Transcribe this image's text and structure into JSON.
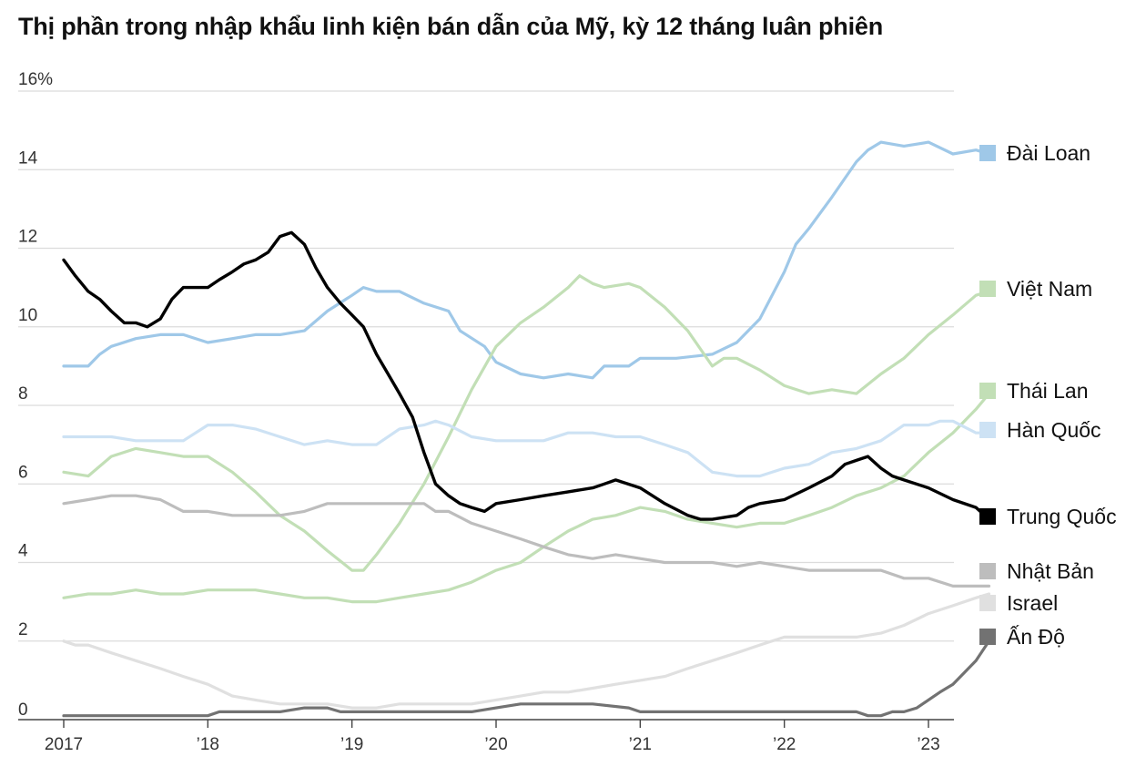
{
  "header": {
    "title": "Thị phần trong nhập khẩu linh kiện bán dẫn của Mỹ, kỳ 12 tháng luân phiên"
  },
  "chart_data": {
    "type": "line",
    "title": "Thị phần trong nhập khẩu linh kiện bán dẫn của Mỹ, kỳ 12 tháng luân phiên",
    "xlabel": "",
    "ylabel": "",
    "ylim": [
      0,
      16
    ],
    "xlim": [
      2017.0,
      2023.5
    ],
    "grid": true,
    "legend_position": "right",
    "y_ticks": [
      {
        "value": 0,
        "label": "0"
      },
      {
        "value": 2,
        "label": "2"
      },
      {
        "value": 4,
        "label": "4"
      },
      {
        "value": 6,
        "label": "6"
      },
      {
        "value": 8,
        "label": "8"
      },
      {
        "value": 10,
        "label": "10"
      },
      {
        "value": 12,
        "label": "12"
      },
      {
        "value": 14,
        "label": "14"
      },
      {
        "value": 16,
        "label": "16%"
      }
    ],
    "x_ticks": [
      {
        "value": 2017,
        "label": "2017"
      },
      {
        "value": 2018,
        "label": "’18"
      },
      {
        "value": 2019,
        "label": "’19"
      },
      {
        "value": 2020,
        "label": "’20"
      },
      {
        "value": 2021,
        "label": "’21"
      },
      {
        "value": 2022,
        "label": "’22"
      },
      {
        "value": 2023,
        "label": "’23"
      }
    ],
    "series": [
      {
        "name": "Đài Loan",
        "color": "#9fc8e8",
        "x": [
          2017.0,
          2017.17,
          2017.25,
          2017.33,
          2017.5,
          2017.67,
          2017.83,
          2018.0,
          2018.17,
          2018.33,
          2018.5,
          2018.67,
          2018.83,
          2019.0,
          2019.08,
          2019.17,
          2019.33,
          2019.5,
          2019.67,
          2019.75,
          2019.92,
          2020.0,
          2020.17,
          2020.33,
          2020.5,
          2020.67,
          2020.75,
          2020.92,
          2021.0,
          2021.25,
          2021.5,
          2021.67,
          2021.83,
          2022.0,
          2022.08,
          2022.17,
          2022.33,
          2022.5,
          2022.58,
          2022.67,
          2022.83,
          2023.0,
          2023.17,
          2023.33,
          2023.42
        ],
        "y": [
          9.0,
          9.0,
          9.3,
          9.5,
          9.7,
          9.8,
          9.8,
          9.6,
          9.7,
          9.8,
          9.8,
          9.9,
          10.4,
          10.8,
          11.0,
          10.9,
          10.9,
          10.6,
          10.4,
          9.9,
          9.5,
          9.1,
          8.8,
          8.7,
          8.8,
          8.7,
          9.0,
          9.0,
          9.2,
          9.2,
          9.3,
          9.6,
          10.2,
          11.4,
          12.1,
          12.5,
          13.3,
          14.2,
          14.5,
          14.7,
          14.6,
          14.7,
          14.4,
          14.5,
          14.4
        ]
      },
      {
        "name": "Việt Nam",
        "color": "#c2dfb6",
        "x": [
          2017.0,
          2017.17,
          2017.33,
          2017.5,
          2017.67,
          2017.83,
          2018.0,
          2018.17,
          2018.33,
          2018.5,
          2018.67,
          2018.83,
          2019.0,
          2019.08,
          2019.17,
          2019.33,
          2019.5,
          2019.67,
          2019.83,
          2020.0,
          2020.17,
          2020.33,
          2020.5,
          2020.58,
          2020.67,
          2020.75,
          2020.92,
          2021.0,
          2021.17,
          2021.33,
          2021.5,
          2021.58,
          2021.67,
          2021.83,
          2022.0,
          2022.17,
          2022.33,
          2022.5,
          2022.67,
          2022.83,
          2023.0,
          2023.17,
          2023.33,
          2023.42
        ],
        "y": [
          6.3,
          6.2,
          6.7,
          6.9,
          6.8,
          6.7,
          6.7,
          6.3,
          5.8,
          5.2,
          4.8,
          4.3,
          3.8,
          3.8,
          4.2,
          5.0,
          6.0,
          7.2,
          8.4,
          9.5,
          10.1,
          10.5,
          11.0,
          11.3,
          11.1,
          11.0,
          11.1,
          11.0,
          10.5,
          9.9,
          9.0,
          9.2,
          9.2,
          8.9,
          8.5,
          8.3,
          8.4,
          8.3,
          8.8,
          9.2,
          9.8,
          10.3,
          10.8,
          10.9
        ]
      },
      {
        "name": "Thái Lan",
        "color": "#c2dfb6",
        "x": [
          2017.0,
          2017.17,
          2017.33,
          2017.5,
          2017.67,
          2017.83,
          2018.0,
          2018.17,
          2018.33,
          2018.5,
          2018.67,
          2018.83,
          2019.0,
          2019.17,
          2019.33,
          2019.5,
          2019.67,
          2019.83,
          2020.0,
          2020.17,
          2020.33,
          2020.5,
          2020.67,
          2020.83,
          2021.0,
          2021.17,
          2021.33,
          2021.5,
          2021.67,
          2021.83,
          2022.0,
          2022.17,
          2022.33,
          2022.5,
          2022.67,
          2022.83,
          2023.0,
          2023.17,
          2023.33,
          2023.42
        ],
        "y": [
          3.1,
          3.2,
          3.2,
          3.3,
          3.2,
          3.2,
          3.3,
          3.3,
          3.3,
          3.2,
          3.1,
          3.1,
          3.0,
          3.0,
          3.1,
          3.2,
          3.3,
          3.5,
          3.8,
          4.0,
          4.4,
          4.8,
          5.1,
          5.2,
          5.4,
          5.3,
          5.1,
          5.0,
          4.9,
          5.0,
          5.0,
          5.2,
          5.4,
          5.7,
          5.9,
          6.2,
          6.8,
          7.3,
          7.9,
          8.3
        ]
      },
      {
        "name": "Hàn Quốc",
        "color": "#cde2f4",
        "x": [
          2017.0,
          2017.17,
          2017.33,
          2017.5,
          2017.67,
          2017.83,
          2018.0,
          2018.17,
          2018.33,
          2018.5,
          2018.67,
          2018.83,
          2019.0,
          2019.17,
          2019.33,
          2019.5,
          2019.58,
          2019.67,
          2019.83,
          2020.0,
          2020.17,
          2020.33,
          2020.5,
          2020.67,
          2020.83,
          2021.0,
          2021.17,
          2021.33,
          2021.5,
          2021.67,
          2021.83,
          2022.0,
          2022.17,
          2022.33,
          2022.5,
          2022.67,
          2022.83,
          2023.0,
          2023.08,
          2023.17,
          2023.33,
          2023.42
        ],
        "y": [
          7.2,
          7.2,
          7.2,
          7.1,
          7.1,
          7.1,
          7.5,
          7.5,
          7.4,
          7.2,
          7.0,
          7.1,
          7.0,
          7.0,
          7.4,
          7.5,
          7.6,
          7.5,
          7.2,
          7.1,
          7.1,
          7.1,
          7.3,
          7.3,
          7.2,
          7.2,
          7.0,
          6.8,
          6.3,
          6.2,
          6.2,
          6.4,
          6.5,
          6.8,
          6.9,
          7.1,
          7.5,
          7.5,
          7.6,
          7.6,
          7.3,
          7.3
        ]
      },
      {
        "name": "Trung Quốc",
        "color": "#000000",
        "x": [
          2017.0,
          2017.08,
          2017.17,
          2017.25,
          2017.33,
          2017.42,
          2017.5,
          2017.58,
          2017.67,
          2017.75,
          2017.83,
          2018.0,
          2018.08,
          2018.17,
          2018.25,
          2018.33,
          2018.42,
          2018.5,
          2018.58,
          2018.67,
          2018.75,
          2018.83,
          2018.92,
          2019.0,
          2019.08,
          2019.17,
          2019.25,
          2019.33,
          2019.42,
          2019.5,
          2019.58,
          2019.67,
          2019.75,
          2019.83,
          2019.92,
          2020.0,
          2020.17,
          2020.33,
          2020.5,
          2020.67,
          2020.75,
          2020.83,
          2021.0,
          2021.17,
          2021.33,
          2021.42,
          2021.5,
          2021.67,
          2021.75,
          2021.83,
          2022.0,
          2022.17,
          2022.33,
          2022.42,
          2022.5,
          2022.58,
          2022.67,
          2022.75,
          2022.83,
          2023.0,
          2023.17,
          2023.33,
          2023.42
        ],
        "y": [
          11.7,
          11.3,
          10.9,
          10.7,
          10.4,
          10.1,
          10.1,
          10.0,
          10.2,
          10.7,
          11.0,
          11.0,
          11.2,
          11.4,
          11.6,
          11.7,
          11.9,
          12.3,
          12.4,
          12.1,
          11.5,
          11.0,
          10.6,
          10.3,
          10.0,
          9.3,
          8.8,
          8.3,
          7.7,
          6.8,
          6.0,
          5.7,
          5.5,
          5.4,
          5.3,
          5.5,
          5.6,
          5.7,
          5.8,
          5.9,
          6.0,
          6.1,
          5.9,
          5.5,
          5.2,
          5.1,
          5.1,
          5.2,
          5.4,
          5.5,
          5.6,
          5.9,
          6.2,
          6.5,
          6.6,
          6.7,
          6.4,
          6.2,
          6.1,
          5.9,
          5.6,
          5.4,
          5.1
        ]
      },
      {
        "name": "Nhật Bản",
        "color": "#bdbdbd",
        "x": [
          2017.0,
          2017.17,
          2017.33,
          2017.5,
          2017.67,
          2017.83,
          2018.0,
          2018.17,
          2018.33,
          2018.5,
          2018.67,
          2018.83,
          2019.0,
          2019.17,
          2019.33,
          2019.5,
          2019.58,
          2019.67,
          2019.83,
          2020.0,
          2020.17,
          2020.33,
          2020.5,
          2020.67,
          2020.83,
          2021.0,
          2021.17,
          2021.33,
          2021.5,
          2021.67,
          2021.83,
          2022.0,
          2022.17,
          2022.33,
          2022.5,
          2022.67,
          2022.83,
          2023.0,
          2023.17,
          2023.33,
          2023.42
        ],
        "y": [
          5.5,
          5.6,
          5.7,
          5.7,
          5.6,
          5.3,
          5.3,
          5.2,
          5.2,
          5.2,
          5.3,
          5.5,
          5.5,
          5.5,
          5.5,
          5.5,
          5.3,
          5.3,
          5.0,
          4.8,
          4.6,
          4.4,
          4.2,
          4.1,
          4.2,
          4.1,
          4.0,
          4.0,
          4.0,
          3.9,
          4.0,
          3.9,
          3.8,
          3.8,
          3.8,
          3.8,
          3.6,
          3.6,
          3.4,
          3.4,
          3.4
        ]
      },
      {
        "name": "Israel",
        "color": "#e0e0e0",
        "x": [
          2017.0,
          2017.08,
          2017.17,
          2017.33,
          2017.5,
          2017.67,
          2017.83,
          2018.0,
          2018.17,
          2018.33,
          2018.5,
          2018.67,
          2018.83,
          2019.0,
          2019.17,
          2019.33,
          2019.5,
          2019.67,
          2019.83,
          2020.0,
          2020.17,
          2020.33,
          2020.5,
          2020.67,
          2020.83,
          2021.0,
          2021.17,
          2021.33,
          2021.5,
          2021.67,
          2021.83,
          2022.0,
          2022.17,
          2022.33,
          2022.5,
          2022.67,
          2022.83,
          2023.0,
          2023.17,
          2023.33,
          2023.42
        ],
        "y": [
          2.0,
          1.9,
          1.9,
          1.7,
          1.5,
          1.3,
          1.1,
          0.9,
          0.6,
          0.5,
          0.4,
          0.4,
          0.4,
          0.3,
          0.3,
          0.4,
          0.4,
          0.4,
          0.4,
          0.5,
          0.6,
          0.7,
          0.7,
          0.8,
          0.9,
          1.0,
          1.1,
          1.3,
          1.5,
          1.7,
          1.9,
          2.1,
          2.1,
          2.1,
          2.1,
          2.2,
          2.4,
          2.7,
          2.9,
          3.1,
          3.2
        ]
      },
      {
        "name": "Ấn Độ",
        "color": "#727272",
        "x": [
          2017.0,
          2017.5,
          2018.0,
          2018.08,
          2018.5,
          2018.67,
          2018.83,
          2018.92,
          2019.5,
          2019.83,
          2020.0,
          2020.17,
          2020.67,
          2020.92,
          2021.0,
          2021.5,
          2022.0,
          2022.5,
          2022.58,
          2022.67,
          2022.75,
          2022.83,
          2022.92,
          2023.0,
          2023.08,
          2023.17,
          2023.33,
          2023.42
        ],
        "y": [
          0.1,
          0.1,
          0.1,
          0.2,
          0.2,
          0.3,
          0.3,
          0.2,
          0.2,
          0.2,
          0.3,
          0.4,
          0.4,
          0.3,
          0.2,
          0.2,
          0.2,
          0.2,
          0.1,
          0.1,
          0.2,
          0.2,
          0.3,
          0.5,
          0.7,
          0.9,
          1.5,
          2.0
        ]
      }
    ],
    "legend": [
      {
        "label": "Đài Loan",
        "color": "#9fc8e8"
      },
      {
        "label": "Việt Nam",
        "color": "#c2dfb6"
      },
      {
        "label": "Thái Lan",
        "color": "#c2dfb6"
      },
      {
        "label": "Hàn Quốc",
        "color": "#cde2f4"
      },
      {
        "label": "Trung Quốc",
        "color": "#000000"
      },
      {
        "label": "Nhật Bản",
        "color": "#bdbdbd"
      },
      {
        "label": "Israel",
        "color": "#e0e0e0"
      },
      {
        "label": "Ấn Độ",
        "color": "#727272"
      }
    ]
  }
}
